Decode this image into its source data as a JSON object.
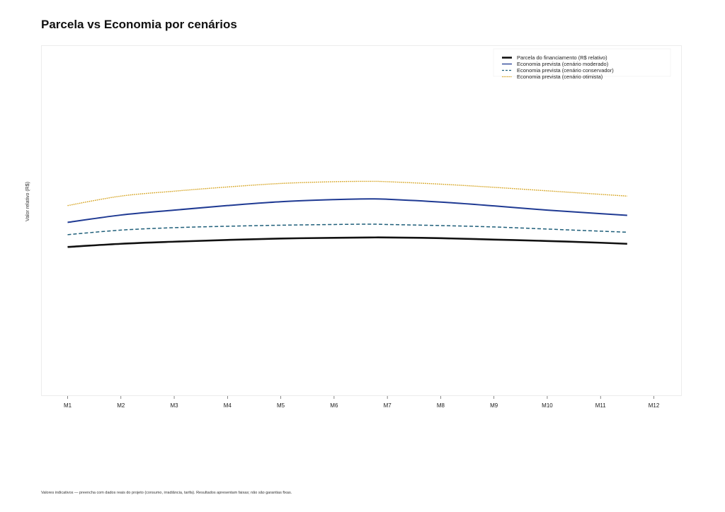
{
  "page": {
    "title": "Parcela vs Economia por cenários",
    "footnote": "Valores indicativos — preencha com dados reais do projeto (consumo, irradiância, tarifa). Resultados apresentam faixas; não são garantias fixas."
  },
  "chart_data": {
    "type": "line",
    "title": "Parcela vs Economia por cenários",
    "xlabel": "",
    "ylabel": "Valor relativo (R$)",
    "categories": [
      "M1",
      "M2",
      "M3",
      "M4",
      "M5",
      "M6",
      "M7",
      "M8",
      "M9",
      "M10",
      "M11",
      "M12"
    ],
    "x_range": [
      0.5,
      12.5
    ],
    "ylim": [
      0,
      100
    ],
    "grid": false,
    "legend_position": "top-right",
    "series": [
      {
        "name": "Parcela do financiamento (R$ relativo)",
        "color": "#111111",
        "style": "solid-bold",
        "x": [
          1,
          2,
          3,
          4,
          5,
          6,
          6.67,
          7,
          8,
          9,
          10,
          11,
          11.5
        ],
        "values": [
          42.5,
          43.4,
          44.0,
          44.5,
          44.9,
          45.1,
          45.2,
          45.2,
          45.0,
          44.6,
          44.2,
          43.7,
          43.4
        ]
      },
      {
        "name": "Economia prevista (cenário moderado)",
        "color": "#1f3a93",
        "style": "solid",
        "x": [
          1,
          2,
          3,
          4,
          5,
          6,
          6.67,
          7,
          8,
          9,
          10,
          11,
          11.5
        ],
        "values": [
          49.5,
          51.6,
          53.0,
          54.3,
          55.4,
          56.0,
          56.2,
          56.1,
          55.3,
          54.2,
          53.0,
          52.0,
          51.5
        ]
      },
      {
        "name": "Economia prevista (cenário conservador)",
        "color": "#1f5f7a",
        "style": "dashed",
        "x": [
          1,
          2,
          3,
          4,
          5,
          6,
          6.67,
          7,
          8,
          9,
          10,
          11,
          11.5
        ],
        "values": [
          46.0,
          47.3,
          48.0,
          48.4,
          48.7,
          48.9,
          49.0,
          48.9,
          48.6,
          48.2,
          47.6,
          47.0,
          46.7
        ]
      },
      {
        "name": "Economia prevista (cenário otimista)",
        "color": "#d4a017",
        "style": "dotted",
        "x": [
          1,
          2,
          3,
          4,
          5,
          6,
          6.67,
          7,
          8,
          9,
          10,
          11,
          11.5
        ],
        "values": [
          54.3,
          57.0,
          58.4,
          59.6,
          60.6,
          61.1,
          61.2,
          61.1,
          60.4,
          59.5,
          58.5,
          57.5,
          57.0
        ]
      }
    ]
  }
}
